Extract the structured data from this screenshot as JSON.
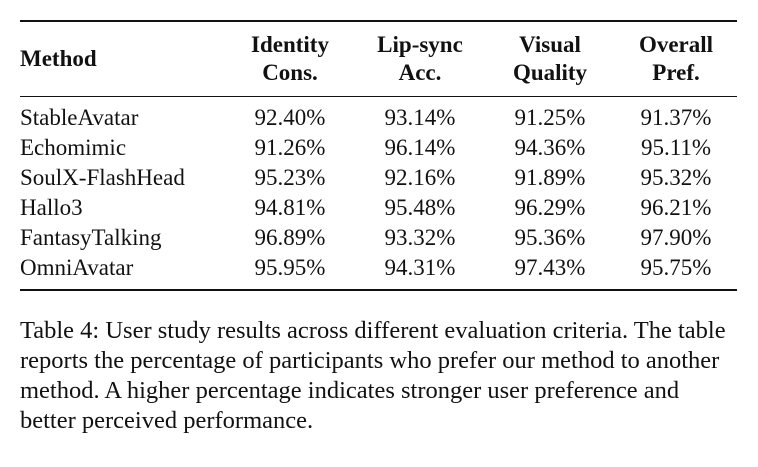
{
  "table": {
    "headers": [
      [
        "Method"
      ],
      [
        "Identity",
        "Cons."
      ],
      [
        "Lip-sync",
        "Acc."
      ],
      [
        "Visual",
        "Quality"
      ],
      [
        "Overall",
        "Pref."
      ]
    ],
    "rows": [
      [
        "StableAvatar",
        "92.40%",
        "93.14%",
        "91.25%",
        "91.37%"
      ],
      [
        "Echomimic",
        "91.26%",
        "96.14%",
        "94.36%",
        "95.11%"
      ],
      [
        "SoulX-FlashHead",
        "95.23%",
        "92.16%",
        "91.89%",
        "95.32%"
      ],
      [
        "Hallo3",
        "94.81%",
        "95.48%",
        "96.29%",
        "96.21%"
      ],
      [
        "FantasyTalking",
        "96.89%",
        "93.32%",
        "95.36%",
        "97.90%"
      ],
      [
        "OmniAvatar",
        "95.95%",
        "94.31%",
        "97.43%",
        "95.75%"
      ]
    ]
  },
  "caption": {
    "text": "Table 4: User study results across different evaluation criteria. The table reports the percentage of participants who prefer our method to another method. A higher percentage indicates stronger user preference and better perceived performance."
  }
}
